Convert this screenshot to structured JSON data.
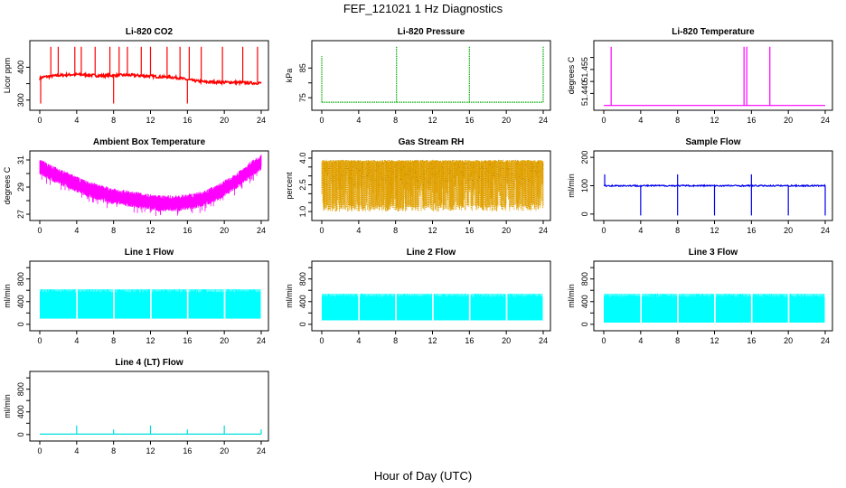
{
  "title": "FEF_121021  1 Hz Diagnostics",
  "xlabel": "Hour of Day (UTC)",
  "chart_data": [
    {
      "id": "co2",
      "type": "line",
      "title": "Li-820 CO2",
      "ylabel": "Licor ppm",
      "color": "#ff0000",
      "xlim": [
        0,
        24
      ],
      "xticks": [
        "0",
        "4",
        "8",
        "12",
        "16",
        "20",
        "24"
      ],
      "ylim": [
        280,
        470
      ],
      "yticks": [
        300,
        350,
        400
      ],
      "ytick_labels": [
        "300",
        "",
        "400"
      ],
      "series": [
        {
          "x": [
            0,
            0.3,
            1,
            2,
            3,
            4,
            5,
            6,
            7,
            8,
            9,
            10,
            11,
            12,
            13,
            14,
            15,
            16,
            17,
            18,
            19,
            20,
            21,
            22,
            23,
            24
          ],
          "y": [
            365,
            370,
            372,
            375,
            377,
            378,
            377,
            375,
            374,
            375,
            376,
            376,
            374,
            373,
            371,
            370,
            368,
            362,
            358,
            355,
            355,
            354,
            354,
            353,
            352,
            352
          ]
        }
      ],
      "spikes_up_x": [
        1.2,
        2.0,
        3.8,
        4.5,
        6.0,
        7.6,
        8.6,
        9.5,
        11.0,
        12.0,
        13.8,
        15.2,
        16.2,
        17.5,
        19.8,
        22.0,
        23.6
      ],
      "spikes_down_x": [
        0.1,
        8.0,
        16.0
      ]
    },
    {
      "id": "pressure",
      "type": "line",
      "title": "Li-820 Pressure",
      "ylabel": "kPa",
      "color": "#00aa00",
      "xlim": [
        0,
        24
      ],
      "xticks": [
        "0",
        "4",
        "8",
        "12",
        "16",
        "20",
        "24"
      ],
      "ylim": [
        72,
        93
      ],
      "yticks": [
        75,
        80,
        85
      ],
      "ytick_labels": [
        "75",
        "",
        "85"
      ],
      "series": [
        {
          "x": [
            0,
            24
          ],
          "y": [
            73.5,
            73.5
          ]
        }
      ],
      "spikes_up_x": [
        0.0,
        8.1,
        16.0,
        24.0
      ]
    },
    {
      "id": "temperature",
      "type": "line",
      "title": "Li-820 Temperature",
      "ylabel": "degrees C",
      "color": "#ff00ff",
      "xlim": [
        0,
        24
      ],
      "xticks": [
        "0",
        "4",
        "8",
        "12",
        "16",
        "20",
        "24"
      ],
      "ylim": [
        51.4345,
        51.4605
      ],
      "yticks": [
        51.44,
        51.445,
        51.45,
        51.455
      ],
      "ytick_labels": [
        "51.440",
        "",
        "51.455",
        ""
      ],
      "series": [
        {
          "x": [
            0,
            24
          ],
          "y": [
            51.435,
            51.435
          ]
        }
      ],
      "spikes_up_x": [
        0.8,
        15.2,
        15.5,
        18.0
      ]
    },
    {
      "id": "box_temp",
      "type": "line",
      "title": "Ambient Box Temperature",
      "ylabel": "degrees C",
      "color": "#ff00ff",
      "xlim": [
        0,
        24
      ],
      "xticks": [
        "0",
        "4",
        "8",
        "12",
        "16",
        "20",
        "24"
      ],
      "ylim": [
        26.8,
        31.4
      ],
      "yticks": [
        27,
        28,
        29,
        30,
        31
      ],
      "ytick_labels": [
        "27",
        "",
        "29",
        "",
        "31"
      ],
      "series": [
        {
          "x": [
            0,
            1,
            2,
            3,
            4,
            5,
            6,
            7,
            8,
            9,
            10,
            11,
            12,
            13,
            14,
            15,
            16,
            17,
            18,
            19,
            20,
            21,
            22,
            23,
            24
          ],
          "y": [
            30.5,
            30.1,
            29.8,
            29.5,
            29.2,
            28.9,
            28.7,
            28.5,
            28.3,
            28.2,
            28.1,
            28.0,
            27.9,
            27.8,
            27.8,
            27.8,
            27.9,
            28.0,
            28.2,
            28.5,
            28.9,
            29.3,
            29.8,
            30.4,
            30.8
          ]
        }
      ]
    },
    {
      "id": "rh",
      "type": "line",
      "title": "Gas Stream RH",
      "ylabel": "percent",
      "color": "#e0a000",
      "xlim": [
        0,
        24
      ],
      "xticks": [
        "0",
        "4",
        "8",
        "12",
        "16",
        "20",
        "24"
      ],
      "ylim": [
        0.7,
        4.2
      ],
      "yticks": [
        1.0,
        1.5,
        2.0,
        2.5,
        3.0,
        3.5,
        4.0
      ],
      "ytick_labels": [
        "1.0",
        "",
        "",
        "2.5",
        "",
        "",
        "4.0"
      ],
      "series": [
        {
          "x": [
            0,
            24
          ],
          "y_high": [
            3.9,
            3.9
          ],
          "y_low": [
            1.0,
            1.0
          ]
        }
      ]
    },
    {
      "id": "sample_flow",
      "type": "line",
      "title": "Sample Flow",
      "ylabel": "ml/min",
      "color": "#0000ee",
      "xlim": [
        0,
        24
      ],
      "xticks": [
        "0",
        "4",
        "8",
        "12",
        "16",
        "20",
        "24"
      ],
      "ylim": [
        -10,
        210
      ],
      "yticks": [
        0,
        100,
        200
      ],
      "ytick_labels": [
        "0",
        "100",
        "200"
      ],
      "series": [
        {
          "x": [
            0,
            24
          ],
          "y": [
            100,
            100
          ]
        }
      ],
      "spikes_up_x": [
        0.1,
        8.0,
        16.0
      ],
      "spikes_down_x": [
        4.0,
        8.0,
        12.0,
        16.0,
        20.0,
        24.0
      ]
    },
    {
      "id": "line1",
      "type": "area",
      "title": "Line 1 Flow",
      "ylabel": "ml/min",
      "color": "#00ffff",
      "xlim": [
        0,
        24
      ],
      "xticks": [
        "0",
        "4",
        "8",
        "12",
        "16",
        "20",
        "24"
      ],
      "ylim": [
        -50,
        1050
      ],
      "yticks": [
        0,
        200,
        400,
        600,
        800,
        1000
      ],
      "ytick_labels": [
        "0",
        "",
        "400",
        "",
        "800",
        ""
      ],
      "series": [
        {
          "x": [
            0,
            24
          ],
          "y_high": [
            620,
            620
          ],
          "y_low": [
            100,
            100
          ]
        }
      ],
      "gaps_x": [
        4.0,
        8.0,
        12.0,
        16.0,
        20.0
      ]
    },
    {
      "id": "line2",
      "type": "area",
      "title": "Line 2 Flow",
      "ylabel": "ml/min",
      "color": "#00ffff",
      "xlim": [
        0,
        24
      ],
      "xticks": [
        "0",
        "4",
        "8",
        "12",
        "16",
        "20",
        "24"
      ],
      "ylim": [
        -50,
        1050
      ],
      "yticks": [
        0,
        200,
        400,
        600,
        800,
        1000
      ],
      "ytick_labels": [
        "0",
        "",
        "400",
        "",
        "800",
        ""
      ],
      "series": [
        {
          "x": [
            0,
            24
          ],
          "y_high": [
            540,
            540
          ],
          "y_low": [
            70,
            70
          ]
        }
      ],
      "gaps_x": [
        4.0,
        8.0,
        12.0,
        16.0,
        20.0
      ]
    },
    {
      "id": "line3",
      "type": "area",
      "title": "Line 3 Flow",
      "ylabel": "ml/min",
      "color": "#00ffff",
      "xlim": [
        0,
        24
      ],
      "xticks": [
        "0",
        "4",
        "8",
        "12",
        "16",
        "20",
        "24"
      ],
      "ylim": [
        -50,
        1050
      ],
      "yticks": [
        0,
        200,
        400,
        600,
        800,
        1000
      ],
      "ytick_labels": [
        "0",
        "",
        "400",
        "",
        "800",
        ""
      ],
      "series": [
        {
          "x": [
            0,
            24
          ],
          "y_high": [
            540,
            540
          ],
          "y_low": [
            30,
            30
          ]
        }
      ],
      "gaps_x": [
        4.0,
        8.0,
        12.0,
        16.0,
        20.0
      ]
    },
    {
      "id": "line4",
      "type": "line",
      "title": "Line 4 (LT) Flow",
      "ylabel": "ml/min",
      "color": "#00dddd",
      "xlim": [
        0,
        24
      ],
      "xticks": [
        "0",
        "4",
        "8",
        "12",
        "16",
        "20",
        "24"
      ],
      "ylim": [
        -50,
        1050
      ],
      "yticks": [
        0,
        200,
        400,
        600,
        800,
        1000
      ],
      "ytick_labels": [
        "0",
        "",
        "400",
        "",
        "800",
        ""
      ],
      "series": [
        {
          "x": [
            0,
            24
          ],
          "y": [
            8,
            8
          ]
        }
      ],
      "spikes_up_x": [
        4.0,
        8.0,
        12.0,
        16.0,
        20.0,
        24.0
      ],
      "spike_heights": [
        160,
        90,
        160,
        90,
        160,
        90
      ]
    }
  ]
}
